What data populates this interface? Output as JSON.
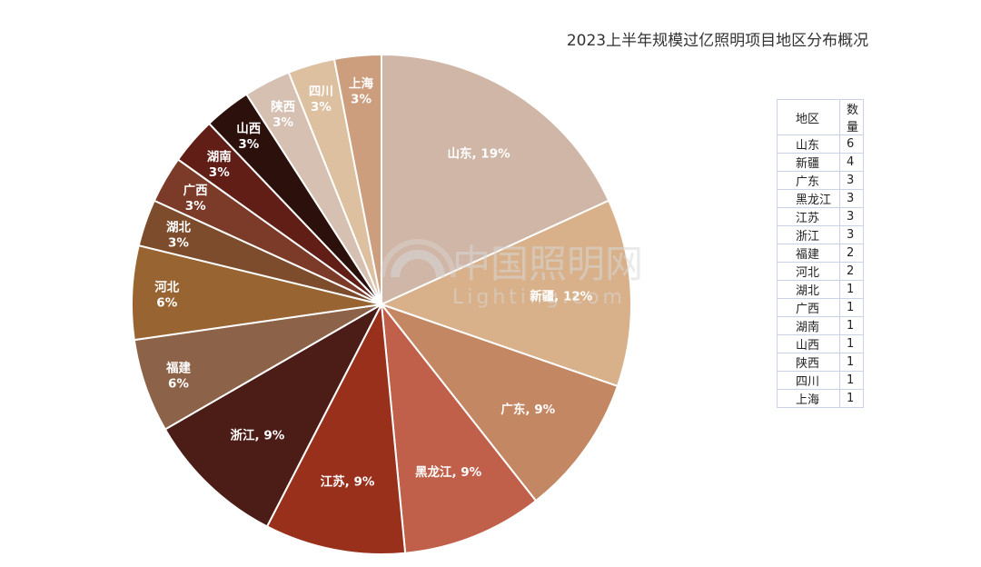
{
  "chart_data": {
    "type": "pie",
    "title": "2023上半年规模过亿照明项目地区分布概况",
    "slices": [
      {
        "name": "山东",
        "value": 6,
        "label_line1": "山东, 19%",
        "label_line2": "",
        "color": "#d0b6a6"
      },
      {
        "name": "新疆",
        "value": 4,
        "label_line1": "新疆, 12%",
        "label_line2": "",
        "color": "#d8b08a"
      },
      {
        "name": "广东",
        "value": 3,
        "label_line1": "广东, 9%",
        "label_line2": "",
        "color": "#c48763"
      },
      {
        "name": "黑龙江",
        "value": 3,
        "label_line1": "黑龙江, 9%",
        "label_line2": "",
        "color": "#c0604a"
      },
      {
        "name": "江苏",
        "value": 3,
        "label_line1": "江苏, 9%",
        "label_line2": "",
        "color": "#98301c"
      },
      {
        "name": "浙江",
        "value": 3,
        "label_line1": "浙江, 9%",
        "label_line2": "",
        "color": "#4c1c16"
      },
      {
        "name": "福建",
        "value": 2,
        "label_line1": "福建",
        "label_line2": "6%",
        "color": "#8c6248"
      },
      {
        "name": "河北",
        "value": 2,
        "label_line1": "河北",
        "label_line2": "6%",
        "color": "#986432"
      },
      {
        "name": "湖北",
        "value": 1,
        "label_line1": "湖北",
        "label_line2": "3%",
        "color": "#7c4c2c"
      },
      {
        "name": "广西",
        "value": 1,
        "label_line1": "广西",
        "label_line2": "3%",
        "color": "#7c3a28"
      },
      {
        "name": "湖南",
        "value": 1,
        "label_line1": "湖南",
        "label_line2": "3%",
        "color": "#601e16"
      },
      {
        "name": "山西",
        "value": 1,
        "label_line1": "山西",
        "label_line2": "3%",
        "color": "#2c100c"
      },
      {
        "name": "陕西",
        "value": 1,
        "label_line1": "陕西",
        "label_line2": "3%",
        "color": "#d6c0b2"
      },
      {
        "name": "四川",
        "value": 1,
        "label_line1": "四川",
        "label_line2": "3%",
        "color": "#dcc0a0"
      },
      {
        "name": "上海",
        "value": 1,
        "label_line1": "上海",
        "label_line2": "3%",
        "color": "#cc9e7e"
      }
    ],
    "table": {
      "headers": [
        "地区",
        "数量"
      ],
      "rows": [
        [
          "山东",
          "6"
        ],
        [
          "新疆",
          "4"
        ],
        [
          "广东",
          "3"
        ],
        [
          "黑龙江",
          "3"
        ],
        [
          "江苏",
          "3"
        ],
        [
          "浙江",
          "3"
        ],
        [
          "福建",
          "2"
        ],
        [
          "河北",
          "2"
        ],
        [
          "湖北",
          "1"
        ],
        [
          "广西",
          "1"
        ],
        [
          "湖南",
          "1"
        ],
        [
          "山西",
          "1"
        ],
        [
          "陕西",
          "1"
        ],
        [
          "四川",
          "1"
        ],
        [
          "上海",
          "1"
        ]
      ]
    },
    "legend": "none"
  },
  "watermark": {
    "text_cn": "中国照明网",
    "text_en": "Lighting.com"
  }
}
